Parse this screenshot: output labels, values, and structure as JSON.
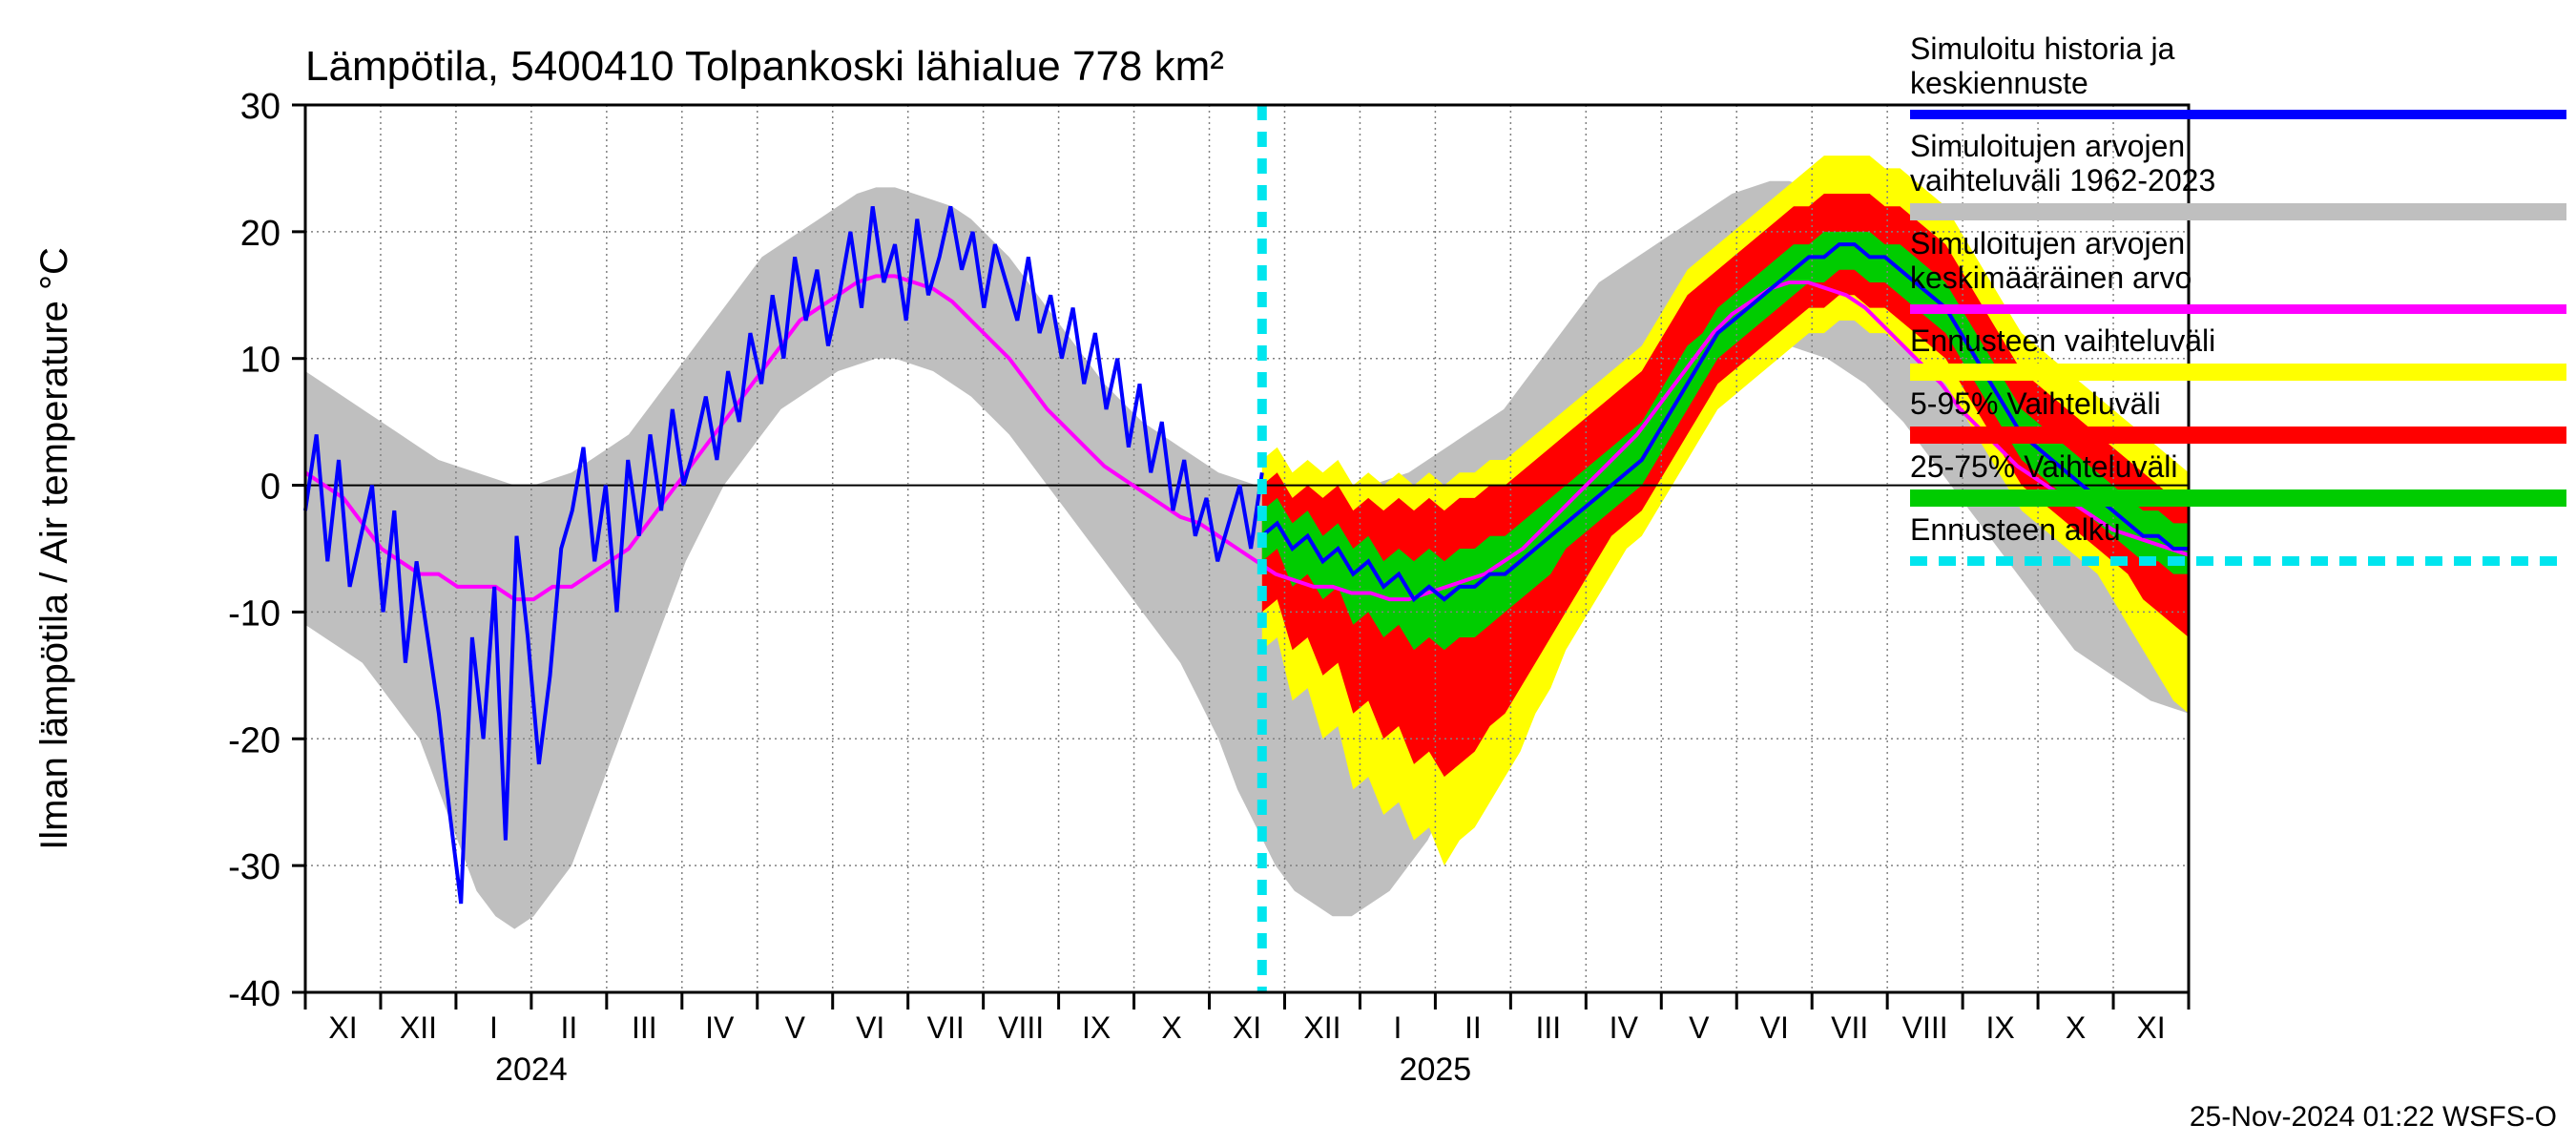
{
  "chart": {
    "type": "line-band-forecast",
    "title": "Lämpötila, 5400410 Tolpankoski lähialue 778 km²",
    "ylabel": "Ilman lämpötila / Air temperature    °C",
    "footer": "25-Nov-2024 01:22 WSFS-O",
    "background_color": "#ffffff",
    "plot_border_color": "#000000",
    "grid_color": "#808080",
    "grid_dash": "2,4",
    "ylim": [
      -40,
      30
    ],
    "ytick_step": 10,
    "xmonths": [
      "XI",
      "XII",
      "I",
      "II",
      "III",
      "IV",
      "V",
      "VI",
      "VII",
      "VIII",
      "IX",
      "X",
      "XI",
      "XII",
      "I",
      "II",
      "III",
      "IV",
      "V",
      "VI",
      "VII",
      "VIII",
      "IX",
      "X",
      "XI"
    ],
    "year_labels": [
      {
        "label": "2024",
        "center_month_index": 2.5
      },
      {
        "label": "2025",
        "center_month_index": 14.5
      }
    ],
    "forecast_start_index": 12.7,
    "colors": {
      "hist_band": "#bfbfbf",
      "forecast_range_full": "#ffff00",
      "forecast_range_5_95": "#ff0000",
      "forecast_range_25_75": "#00cc00",
      "sim_main": "#0000ff",
      "sim_mean": "#ff00ff",
      "forecast_start_line": "#00e5ee"
    },
    "line_widths": {
      "sim_main": 4,
      "sim_mean": 4,
      "forecast_start_line": 10
    },
    "legend": [
      {
        "label1": "Simuloitu historia ja",
        "label2": "keskiennuste",
        "color": "#0000ff",
        "thick": 10,
        "dash": null
      },
      {
        "label1": "Simuloitujen arvojen",
        "label2": "vaihteluväli 1962-2023",
        "color": "#bfbfbf",
        "thick": 18,
        "dash": null
      },
      {
        "label1": "Simuloitujen arvojen",
        "label2": "keskimääräinen arvo",
        "color": "#ff00ff",
        "thick": 10,
        "dash": null
      },
      {
        "label1": "Ennusteen vaihteluväli",
        "label2": null,
        "color": "#ffff00",
        "thick": 18,
        "dash": null
      },
      {
        "label1": "5-95% Vaihteluväli",
        "label2": null,
        "color": "#ff0000",
        "thick": 18,
        "dash": null
      },
      {
        "label1": "25-75% Vaihteluväli",
        "label2": null,
        "color": "#00cc00",
        "thick": 18,
        "dash": null
      },
      {
        "label1": "Ennusteen alku",
        "label2": null,
        "color": "#00e5ee",
        "thick": 10,
        "dash": "18,12"
      }
    ],
    "sim_mean": [
      1,
      0,
      -1,
      -3,
      -5,
      -6,
      -7,
      -7,
      -8,
      -8,
      -8,
      -9,
      -9,
      -8,
      -8,
      -7,
      -6,
      -5,
      -3,
      -1,
      1,
      3,
      5,
      7,
      9,
      11,
      13,
      14,
      15,
      16,
      16.5,
      16.5,
      16,
      15.5,
      14.5,
      13,
      11.5,
      10,
      8,
      6,
      4.5,
      3,
      1.5,
      0.5,
      -0.5,
      -1.5,
      -2.5,
      -3,
      -4,
      -5,
      -6,
      -7,
      -7.5,
      -8,
      -8,
      -8.5,
      -8.5,
      -9,
      -9,
      -8.5,
      -8,
      -7.5,
      -7,
      -6,
      -5,
      -3.5,
      -2,
      -0.5,
      1,
      2.5,
      4,
      6,
      8,
      10,
      12,
      13.5,
      14.5,
      15.5,
      16,
      16,
      15.5,
      15,
      14,
      12.5,
      11,
      9.5,
      8,
      6,
      4.5,
      3,
      1.5,
      0.5,
      -0.5,
      -1.5,
      -2.5,
      -3.5,
      -4,
      -4.5,
      -5,
      -5.5
    ],
    "hist_band_lo": [
      -11,
      -12,
      -13,
      -14,
      -16,
      -18,
      -20,
      -24,
      -28,
      -32,
      -34,
      -35,
      -34,
      -32,
      -30,
      -26,
      -22,
      -18,
      -14,
      -10,
      -6,
      -3,
      0,
      2,
      4,
      6,
      7,
      8,
      9,
      9.5,
      10,
      10,
      9.5,
      9,
      8,
      7,
      5.5,
      4,
      2,
      0,
      -2,
      -4,
      -6,
      -8,
      -10,
      -12,
      -14,
      -17,
      -20,
      -24,
      -27,
      -30,
      -32,
      -33,
      -34,
      -34,
      -33,
      -32,
      -30,
      -28,
      -25,
      -22,
      -19,
      -16,
      -13,
      -10,
      -7,
      -4,
      -1,
      1,
      3,
      5,
      7,
      8,
      9,
      10,
      10.5,
      11,
      11,
      10.5,
      10,
      9,
      8,
      6.5,
      5,
      3,
      1,
      -1,
      -3,
      -5,
      -7,
      -9,
      -11,
      -13,
      -14,
      -15,
      -16,
      -17,
      -17.5,
      -18
    ],
    "hist_band_hi": [
      9,
      8,
      7,
      6,
      5,
      4,
      3,
      2,
      1.5,
      1,
      0.5,
      0,
      0,
      0.5,
      1,
      2,
      3,
      4,
      6,
      8,
      10,
      12,
      14,
      16,
      18,
      19,
      20,
      21,
      22,
      23,
      23.5,
      23.5,
      23,
      22.5,
      22,
      21,
      19.5,
      18,
      16,
      14,
      12,
      10,
      8,
      6.5,
      5,
      4,
      3,
      2,
      1,
      0.5,
      0,
      -0.5,
      -1,
      -1,
      -1,
      -0.5,
      0,
      0.5,
      1,
      2,
      3,
      4,
      5,
      6,
      8,
      10,
      12,
      14,
      16,
      17,
      18,
      19,
      20,
      21,
      22,
      23,
      23.5,
      24,
      24,
      23.5,
      23,
      22,
      21,
      19.5,
      18,
      16,
      14,
      12,
      10,
      8,
      6.5,
      5,
      4,
      3,
      2,
      1,
      0.5,
      0,
      -0.5,
      -1
    ],
    "sim_main_hist": [
      -2,
      4,
      -6,
      2,
      -8,
      -4,
      0,
      -10,
      -2,
      -14,
      -6,
      -12,
      -18,
      -26,
      -33,
      -12,
      -20,
      -8,
      -28,
      -4,
      -12,
      -22,
      -15,
      -5,
      -2,
      3,
      -6,
      0,
      -10,
      2,
      -4,
      4,
      -2,
      6,
      0,
      3,
      7,
      2,
      9,
      5,
      12,
      8,
      15,
      10,
      18,
      13,
      17,
      11,
      15,
      20,
      14,
      22,
      16,
      19,
      13,
      21,
      15,
      18,
      22,
      17,
      20,
      14,
      19,
      16,
      13,
      18,
      12,
      15,
      10,
      14,
      8,
      12,
      6,
      10,
      3,
      8,
      1,
      5,
      -2,
      2,
      -4,
      -1,
      -6,
      -3,
      0,
      -5,
      1
    ],
    "forecast_median": [
      -4,
      -3,
      -5,
      -4,
      -6,
      -5,
      -7,
      -6,
      -8,
      -7,
      -9,
      -8,
      -9,
      -8,
      -8,
      -7,
      -7,
      -6,
      -5,
      -4,
      -3,
      -2,
      -1,
      0,
      1,
      2,
      4,
      6,
      8,
      10,
      12,
      13,
      14,
      15,
      16,
      17,
      18,
      18,
      19,
      19,
      18,
      18,
      17,
      16,
      15,
      14,
      12,
      10,
      8,
      6,
      4,
      3,
      2,
      1,
      0,
      -1,
      -2,
      -3,
      -4,
      -4,
      -5,
      -5
    ],
    "forecast_25": [
      -6,
      -5,
      -8,
      -7,
      -9,
      -8,
      -11,
      -10,
      -12,
      -11,
      -13,
      -12,
      -13,
      -12,
      -12,
      -11,
      -10,
      -9,
      -8,
      -7,
      -5,
      -4,
      -3,
      -2,
      -1,
      0,
      2,
      4,
      6,
      8,
      10,
      11,
      12,
      13,
      14,
      15,
      16,
      16,
      17,
      17,
      16,
      16,
      15,
      14,
      13,
      12,
      10,
      8,
      6,
      4,
      2,
      1,
      0,
      -1,
      -2,
      -3,
      -4,
      -5,
      -6,
      -6,
      -7,
      -7
    ],
    "forecast_75": [
      -2,
      -1,
      -3,
      -2,
      -4,
      -3,
      -5,
      -4,
      -6,
      -5,
      -6,
      -5,
      -6,
      -5,
      -5,
      -4,
      -4,
      -3,
      -2,
      -1,
      0,
      1,
      2,
      3,
      4,
      5,
      7,
      9,
      11,
      12,
      14,
      15,
      16,
      17,
      18,
      19,
      19,
      20,
      20,
      20,
      20,
      19,
      19,
      18,
      17,
      16,
      14,
      12,
      10,
      8,
      6,
      5,
      4,
      3,
      2,
      1,
      0,
      -1,
      -2,
      -2,
      -3,
      -3
    ],
    "forecast_5": [
      -10,
      -9,
      -13,
      -12,
      -15,
      -14,
      -18,
      -17,
      -20,
      -19,
      -22,
      -21,
      -23,
      -22,
      -21,
      -19,
      -18,
      -16,
      -14,
      -12,
      -10,
      -8,
      -6,
      -4,
      -3,
      -2,
      0,
      2,
      4,
      6,
      8,
      9,
      10,
      11,
      12,
      13,
      14,
      14,
      15,
      15,
      14,
      14,
      13,
      12,
      11,
      10,
      8,
      6,
      4,
      2,
      0,
      -1,
      -2,
      -3,
      -4,
      -5,
      -6,
      -7,
      -9,
      -10,
      -11,
      -12
    ],
    "forecast_95": [
      0,
      1,
      -1,
      0,
      -1,
      0,
      -2,
      -1,
      -2,
      -1,
      -2,
      -1,
      -2,
      -1,
      -1,
      0,
      0,
      1,
      2,
      3,
      4,
      5,
      6,
      7,
      8,
      9,
      11,
      13,
      15,
      16,
      17,
      18,
      19,
      20,
      21,
      22,
      22,
      23,
      23,
      23,
      23,
      22,
      22,
      21,
      20,
      19,
      17,
      15,
      13,
      11,
      9,
      8,
      7,
      6,
      5,
      4,
      3,
      2,
      1,
      0,
      -1,
      -1
    ],
    "forecast_min": [
      -13,
      -12,
      -17,
      -16,
      -20,
      -19,
      -24,
      -23,
      -26,
      -25,
      -28,
      -27,
      -30,
      -28,
      -27,
      -25,
      -23,
      -21,
      -18,
      -16,
      -13,
      -11,
      -9,
      -7,
      -5,
      -4,
      -2,
      0,
      2,
      4,
      6,
      7,
      8,
      9,
      10,
      11,
      12,
      12,
      13,
      13,
      12,
      12,
      11,
      10,
      9,
      8,
      6,
      4,
      2,
      0,
      -2,
      -3,
      -4,
      -5,
      -6,
      -7,
      -9,
      -11,
      -13,
      -15,
      -17,
      -18
    ],
    "forecast_max": [
      2,
      3,
      1,
      2,
      1,
      2,
      0,
      1,
      0,
      1,
      0,
      1,
      0,
      1,
      1,
      2,
      2,
      3,
      4,
      5,
      6,
      7,
      8,
      9,
      10,
      11,
      13,
      15,
      17,
      18,
      19,
      20,
      21,
      22,
      23,
      24,
      25,
      26,
      26,
      26,
      26,
      25,
      25,
      24,
      23,
      22,
      20,
      18,
      16,
      14,
      12,
      11,
      10,
      9,
      8,
      7,
      6,
      5,
      4,
      3,
      2,
      1
    ]
  }
}
